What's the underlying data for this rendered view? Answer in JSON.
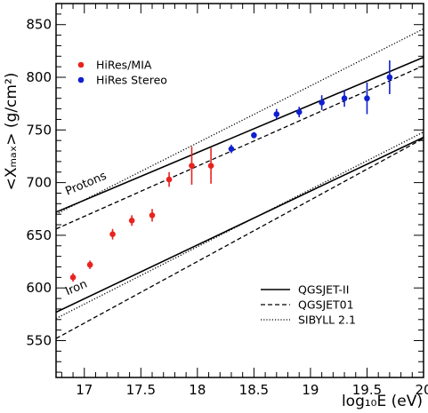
{
  "chart_data": {
    "type": "scatter",
    "xlabel": "log₁₀E (eV)",
    "ylabel": "<Xₘₐₓ> (g/cm²)",
    "xlim": [
      16.75,
      20.0
    ],
    "ylim": [
      515,
      870
    ],
    "x_ticks": [
      17,
      17.5,
      18,
      18.5,
      19,
      19.5,
      20
    ],
    "x_tick_labels": [
      "17",
      "17.5",
      "18",
      "18.5",
      "19",
      "19.5",
      "20"
    ],
    "y_ticks": [
      550,
      600,
      650,
      700,
      750,
      800,
      850
    ],
    "y_tick_labels": [
      "550",
      "600",
      "650",
      "700",
      "750",
      "800",
      "850"
    ],
    "grid": false,
    "legend_position": "top-left",
    "series": [
      {
        "name": "HiRes/MIA",
        "color": "#e8231f",
        "points": [
          {
            "x": 16.9,
            "y": 610,
            "err": 4
          },
          {
            "x": 17.05,
            "y": 622,
            "err": 4
          },
          {
            "x": 17.25,
            "y": 651,
            "err": 5
          },
          {
            "x": 17.42,
            "y": 664,
            "err": 5
          },
          {
            "x": 17.6,
            "y": 669,
            "err": 6
          },
          {
            "x": 17.75,
            "y": 703,
            "err": 7
          },
          {
            "x": 17.95,
            "y": 716,
            "err": 18
          },
          {
            "x": 18.12,
            "y": 716,
            "err": 17
          }
        ]
      },
      {
        "name": "HiRes Stereo",
        "color": "#1020d0",
        "points": [
          {
            "x": 18.3,
            "y": 732,
            "err": 4
          },
          {
            "x": 18.5,
            "y": 745,
            "err": 3
          },
          {
            "x": 18.7,
            "y": 765,
            "err": 5
          },
          {
            "x": 18.9,
            "y": 767,
            "err": 5
          },
          {
            "x": 19.1,
            "y": 776,
            "err": 7
          },
          {
            "x": 19.3,
            "y": 780,
            "err": 8
          },
          {
            "x": 19.5,
            "y": 780,
            "err": 15
          },
          {
            "x": 19.7,
            "y": 800,
            "err": 16
          }
        ]
      }
    ],
    "models": [
      {
        "name": "QGSJET-II",
        "style": "solid",
        "lines": [
          {
            "primary": "Protons",
            "x": [
              16.75,
              20.0
            ],
            "y": [
              672,
              819
            ]
          },
          {
            "primary": "Iron",
            "x": [
              16.75,
              20.0
            ],
            "y": [
              577,
              743
            ]
          }
        ]
      },
      {
        "name": "QGSJET01",
        "style": "dashed",
        "lines": [
          {
            "primary": "Protons",
            "x": [
              16.75,
              20.0
            ],
            "y": [
              656,
              811
            ]
          },
          {
            "primary": "Iron",
            "x": [
              16.75,
              20.0
            ],
            "y": [
              552,
              742
            ]
          }
        ]
      },
      {
        "name": "SIBYLL 2.1",
        "style": "dotted",
        "lines": [
          {
            "primary": "Protons",
            "x": [
              16.75,
              20.0
            ],
            "y": [
              670,
              846
            ]
          },
          {
            "primary": "Iron",
            "x": [
              16.75,
              20.0
            ],
            "y": [
              571,
              748
            ]
          }
        ]
      }
    ],
    "annotations": [
      {
        "text": "Protons",
        "x": 16.85,
        "y": 688
      },
      {
        "text": "Iron",
        "x": 16.85,
        "y": 593
      }
    ]
  }
}
